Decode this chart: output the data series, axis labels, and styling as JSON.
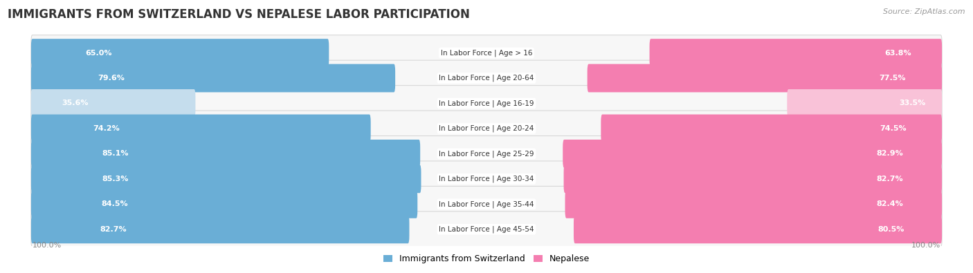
{
  "title": "IMMIGRANTS FROM SWITZERLAND VS NEPALESE LABOR PARTICIPATION",
  "source": "Source: ZipAtlas.com",
  "categories": [
    "In Labor Force | Age > 16",
    "In Labor Force | Age 20-64",
    "In Labor Force | Age 16-19",
    "In Labor Force | Age 20-24",
    "In Labor Force | Age 25-29",
    "In Labor Force | Age 30-34",
    "In Labor Force | Age 35-44",
    "In Labor Force | Age 45-54"
  ],
  "swiss_values": [
    65.0,
    79.6,
    35.6,
    74.2,
    85.1,
    85.3,
    84.5,
    82.7
  ],
  "nepal_values": [
    63.8,
    77.5,
    33.5,
    74.5,
    82.9,
    82.7,
    82.4,
    80.5
  ],
  "swiss_color": "#6aaed6",
  "swiss_color_light": "#c5dded",
  "nepal_color": "#f47eb0",
  "nepal_color_light": "#f9c2d8",
  "row_bg_color": "#ececec",
  "row_border_color": "#d8d8d8",
  "label_color_white": "#ffffff",
  "label_color_dark": "#666666",
  "legend_swiss": "Immigrants from Switzerland",
  "legend_nepal": "Nepalese",
  "max_value": 100.0,
  "title_fontsize": 12,
  "label_fontsize": 8,
  "category_fontsize": 7.5,
  "legend_fontsize": 9,
  "axis_label_fontsize": 8
}
